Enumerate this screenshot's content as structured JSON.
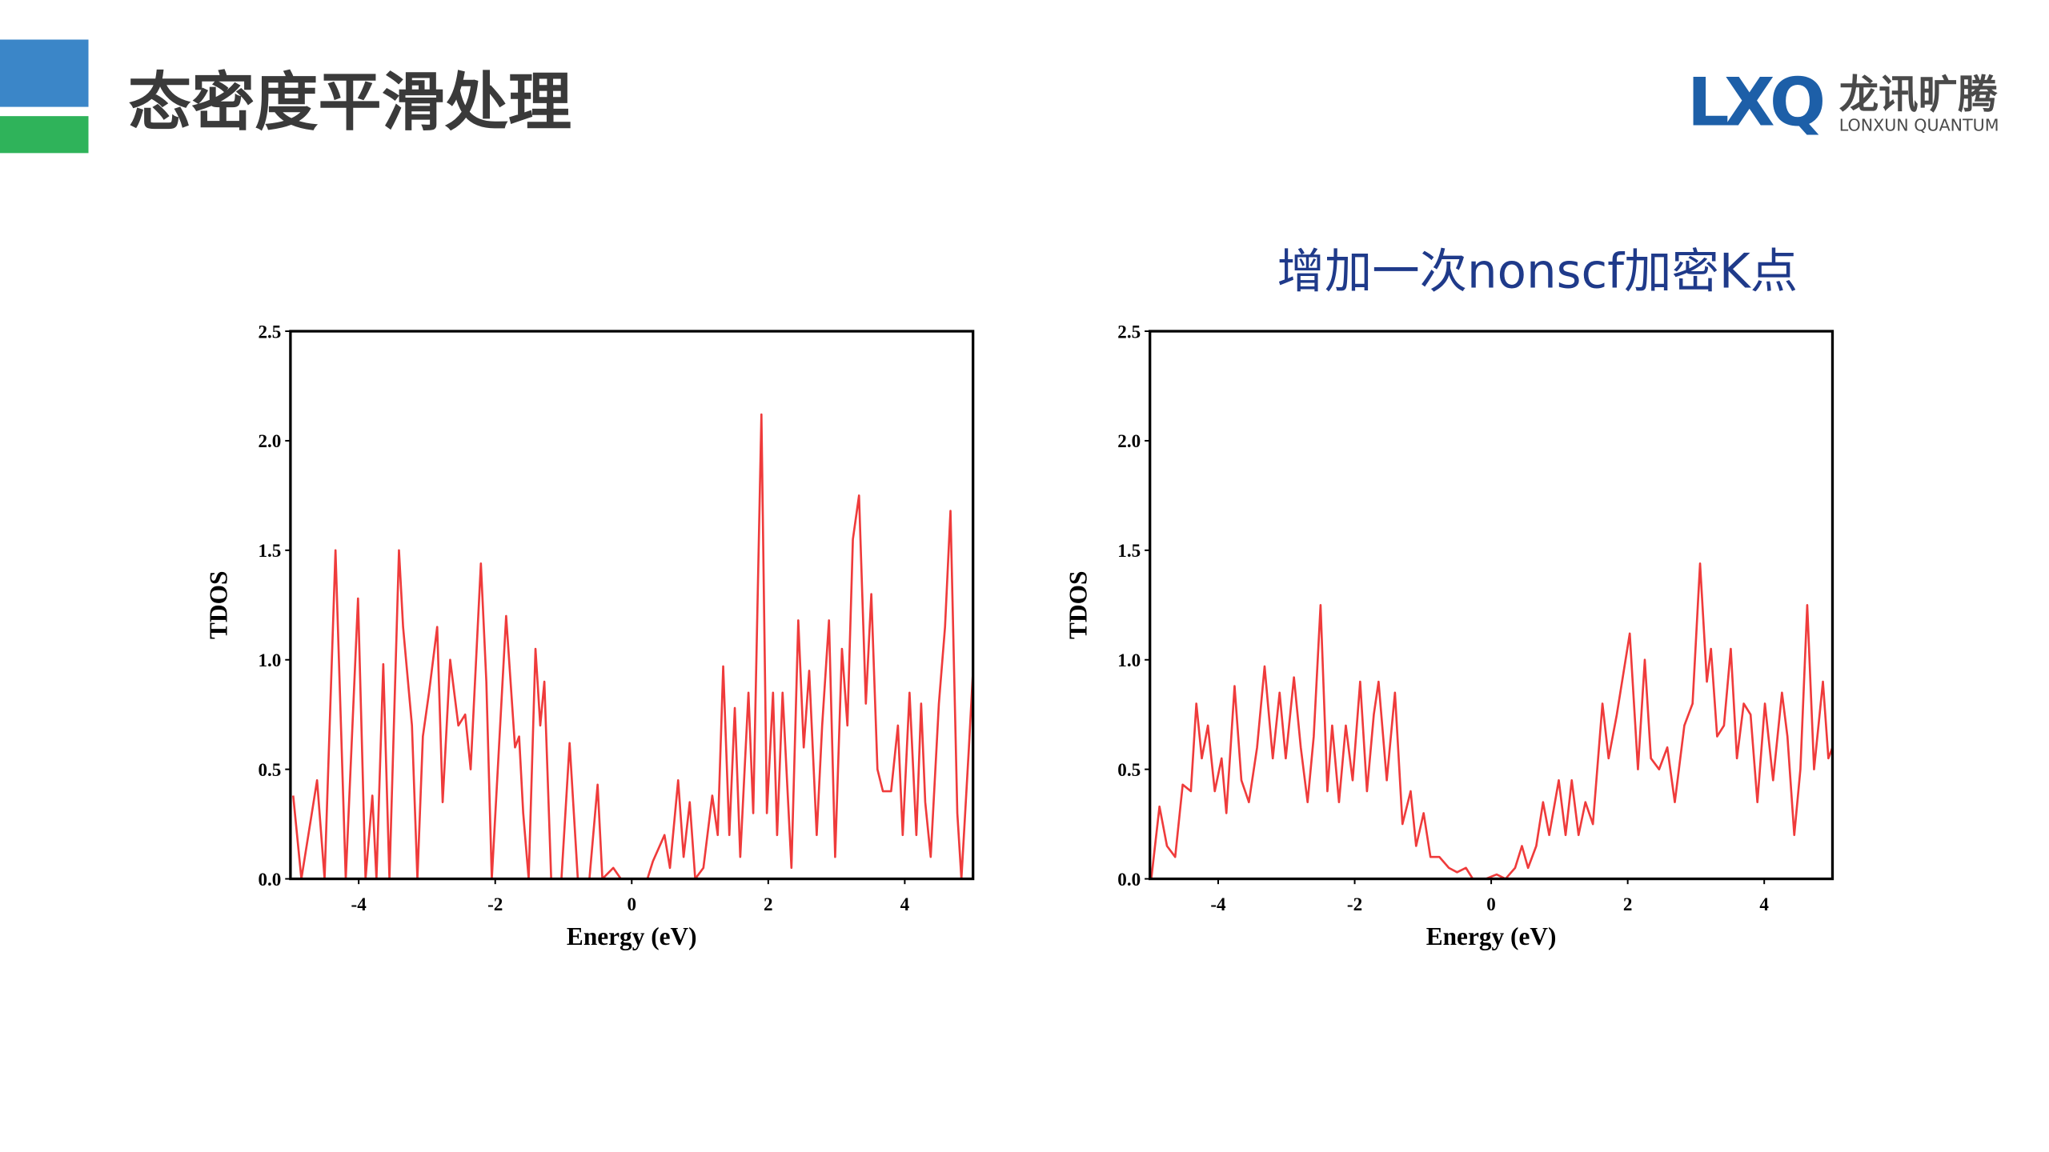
{
  "header": {
    "title": "态密度平滑处理",
    "logo": {
      "mark": "LXQ",
      "name": "龙讯旷腾",
      "subtitle": "LONXUN QUANTUM"
    }
  },
  "chart_data": [
    {
      "type": "line",
      "xlabel": "Energy (eV)",
      "ylabel": "TDOS",
      "color": "#ef3b3b",
      "xlim": [
        -5,
        5
      ],
      "xticks": [
        -4,
        -2,
        0,
        2,
        4
      ],
      "ylim": [
        0,
        2.5
      ],
      "yticks": [
        {
          "value": 0,
          "label": "0.0"
        },
        0.5,
        {
          "value": 1,
          "label": "1.0"
        },
        1.5,
        {
          "value": 2,
          "label": "2.0"
        },
        2.5
      ],
      "x": [
        -4.96,
        -4.84,
        -4.61,
        -4.5,
        -4.34,
        -4.19,
        -4.01,
        -3.9,
        -3.8,
        -3.74,
        -3.64,
        -3.55,
        -3.41,
        -3.35,
        -3.22,
        -3.14,
        -3.06,
        -2.97,
        -2.85,
        -2.77,
        -2.66,
        -2.54,
        -2.44,
        -2.36,
        -2.21,
        -2.13,
        -2.05,
        -1.84,
        -1.71,
        -1.65,
        -1.59,
        -1.51,
        -1.41,
        -1.34,
        -1.28,
        -1.18,
        -1.03,
        -0.91,
        -0.79,
        -0.62,
        -0.5,
        -0.43,
        -0.27,
        -0.16,
        0.23,
        0.31,
        0.48,
        0.56,
        0.68,
        0.76,
        0.85,
        0.93,
        1.05,
        1.18,
        1.26,
        1.34,
        1.43,
        1.51,
        1.59,
        1.71,
        1.78,
        1.9,
        1.98,
        2.07,
        2.13,
        2.21,
        2.34,
        2.44,
        2.52,
        2.6,
        2.71,
        2.79,
        2.89,
        2.98,
        3.08,
        3.16,
        3.24,
        3.33,
        3.43,
        3.51,
        3.6,
        3.68,
        3.8,
        3.9,
        3.97,
        4.07,
        4.17,
        4.24,
        4.3,
        4.38,
        4.5,
        4.59,
        4.67,
        4.77,
        4.83,
        4.94,
        5.0
      ],
      "values": [
        0.38,
        0,
        0.45,
        0,
        1.5,
        0,
        1.28,
        0,
        0.38,
        0,
        0.98,
        0,
        1.5,
        1.15,
        0.7,
        0,
        0.65,
        0.85,
        1.15,
        0.35,
        1.0,
        0.7,
        0.75,
        0.5,
        1.44,
        0.9,
        0,
        1.2,
        0.6,
        0.65,
        0.3,
        0,
        1.05,
        0.7,
        0.9,
        0,
        0,
        0.62,
        0,
        0,
        0.43,
        0,
        0.05,
        0,
        0,
        0.08,
        0.2,
        0.05,
        0.45,
        0.1,
        0.35,
        0,
        0.05,
        0.38,
        0.2,
        0.97,
        0.2,
        0.78,
        0.1,
        0.85,
        0.3,
        2.12,
        0.3,
        0.85,
        0.2,
        0.85,
        0.05,
        1.18,
        0.6,
        0.95,
        0.2,
        0.7,
        1.18,
        0.1,
        1.05,
        0.7,
        1.55,
        1.75,
        0.8,
        1.3,
        0.5,
        0.4,
        0.4,
        0.7,
        0.2,
        0.85,
        0.2,
        0.8,
        0.35,
        0.1,
        0.8,
        1.15,
        1.68,
        0.3,
        0,
        0.6,
        0.95
      ]
    },
    {
      "type": "line",
      "title": "增加一次nonscf加密K点",
      "xlabel": "Energy (eV)",
      "ylabel": "TDOS",
      "color": "#ef3b3b",
      "xlim": [
        -5,
        5
      ],
      "xticks": [
        -4,
        -2,
        0,
        2,
        4
      ],
      "ylim": [
        0,
        2.5
      ],
      "yticks": [
        {
          "value": 0,
          "label": "0.0"
        },
        0.5,
        {
          "value": 1,
          "label": "1.0"
        },
        1.5,
        {
          "value": 2,
          "label": "2.0"
        },
        2.5
      ],
      "x": [
        -4.98,
        -4.86,
        -4.75,
        -4.63,
        -4.52,
        -4.4,
        -4.32,
        -4.24,
        -4.15,
        -4.05,
        -3.95,
        -3.88,
        -3.76,
        -3.66,
        -3.55,
        -3.43,
        -3.32,
        -3.2,
        -3.1,
        -3.01,
        -2.89,
        -2.79,
        -2.69,
        -2.6,
        -2.5,
        -2.4,
        -2.33,
        -2.23,
        -2.13,
        -2.03,
        -1.92,
        -1.82,
        -1.72,
        -1.65,
        -1.53,
        -1.41,
        -1.3,
        -1.18,
        -1.1,
        -0.99,
        -0.89,
        -0.76,
        -0.62,
        -0.5,
        -0.37,
        -0.27,
        -0.08,
        0.08,
        0.21,
        0.35,
        0.45,
        0.54,
        0.66,
        0.76,
        0.85,
        0.99,
        1.09,
        1.18,
        1.28,
        1.38,
        1.49,
        1.63,
        1.72,
        1.84,
        2.03,
        2.15,
        2.25,
        2.34,
        2.46,
        2.58,
        2.69,
        2.83,
        2.95,
        3.06,
        3.16,
        3.22,
        3.31,
        3.41,
        3.51,
        3.6,
        3.7,
        3.8,
        3.9,
        4.01,
        4.13,
        4.26,
        4.34,
        4.44,
        4.53,
        4.63,
        4.73,
        4.86,
        4.94,
        5.0
      ],
      "values": [
        0,
        0.33,
        0.15,
        0.1,
        0.43,
        0.4,
        0.8,
        0.55,
        0.7,
        0.4,
        0.55,
        0.3,
        0.88,
        0.45,
        0.35,
        0.6,
        0.97,
        0.55,
        0.85,
        0.55,
        0.92,
        0.6,
        0.35,
        0.65,
        1.25,
        0.4,
        0.7,
        0.35,
        0.7,
        0.45,
        0.9,
        0.4,
        0.75,
        0.9,
        0.45,
        0.85,
        0.25,
        0.4,
        0.15,
        0.3,
        0.1,
        0.1,
        0.05,
        0.03,
        0.05,
        0,
        0,
        0.02,
        0,
        0.05,
        0.15,
        0.05,
        0.15,
        0.35,
        0.2,
        0.45,
        0.2,
        0.45,
        0.2,
        0.35,
        0.25,
        0.8,
        0.55,
        0.75,
        1.12,
        0.5,
        1.0,
        0.55,
        0.5,
        0.6,
        0.35,
        0.7,
        0.8,
        1.44,
        0.9,
        1.05,
        0.65,
        0.7,
        1.05,
        0.55,
        0.8,
        0.75,
        0.35,
        0.8,
        0.45,
        0.85,
        0.65,
        0.2,
        0.5,
        1.25,
        0.5,
        0.9,
        0.55,
        0.6
      ]
    }
  ]
}
